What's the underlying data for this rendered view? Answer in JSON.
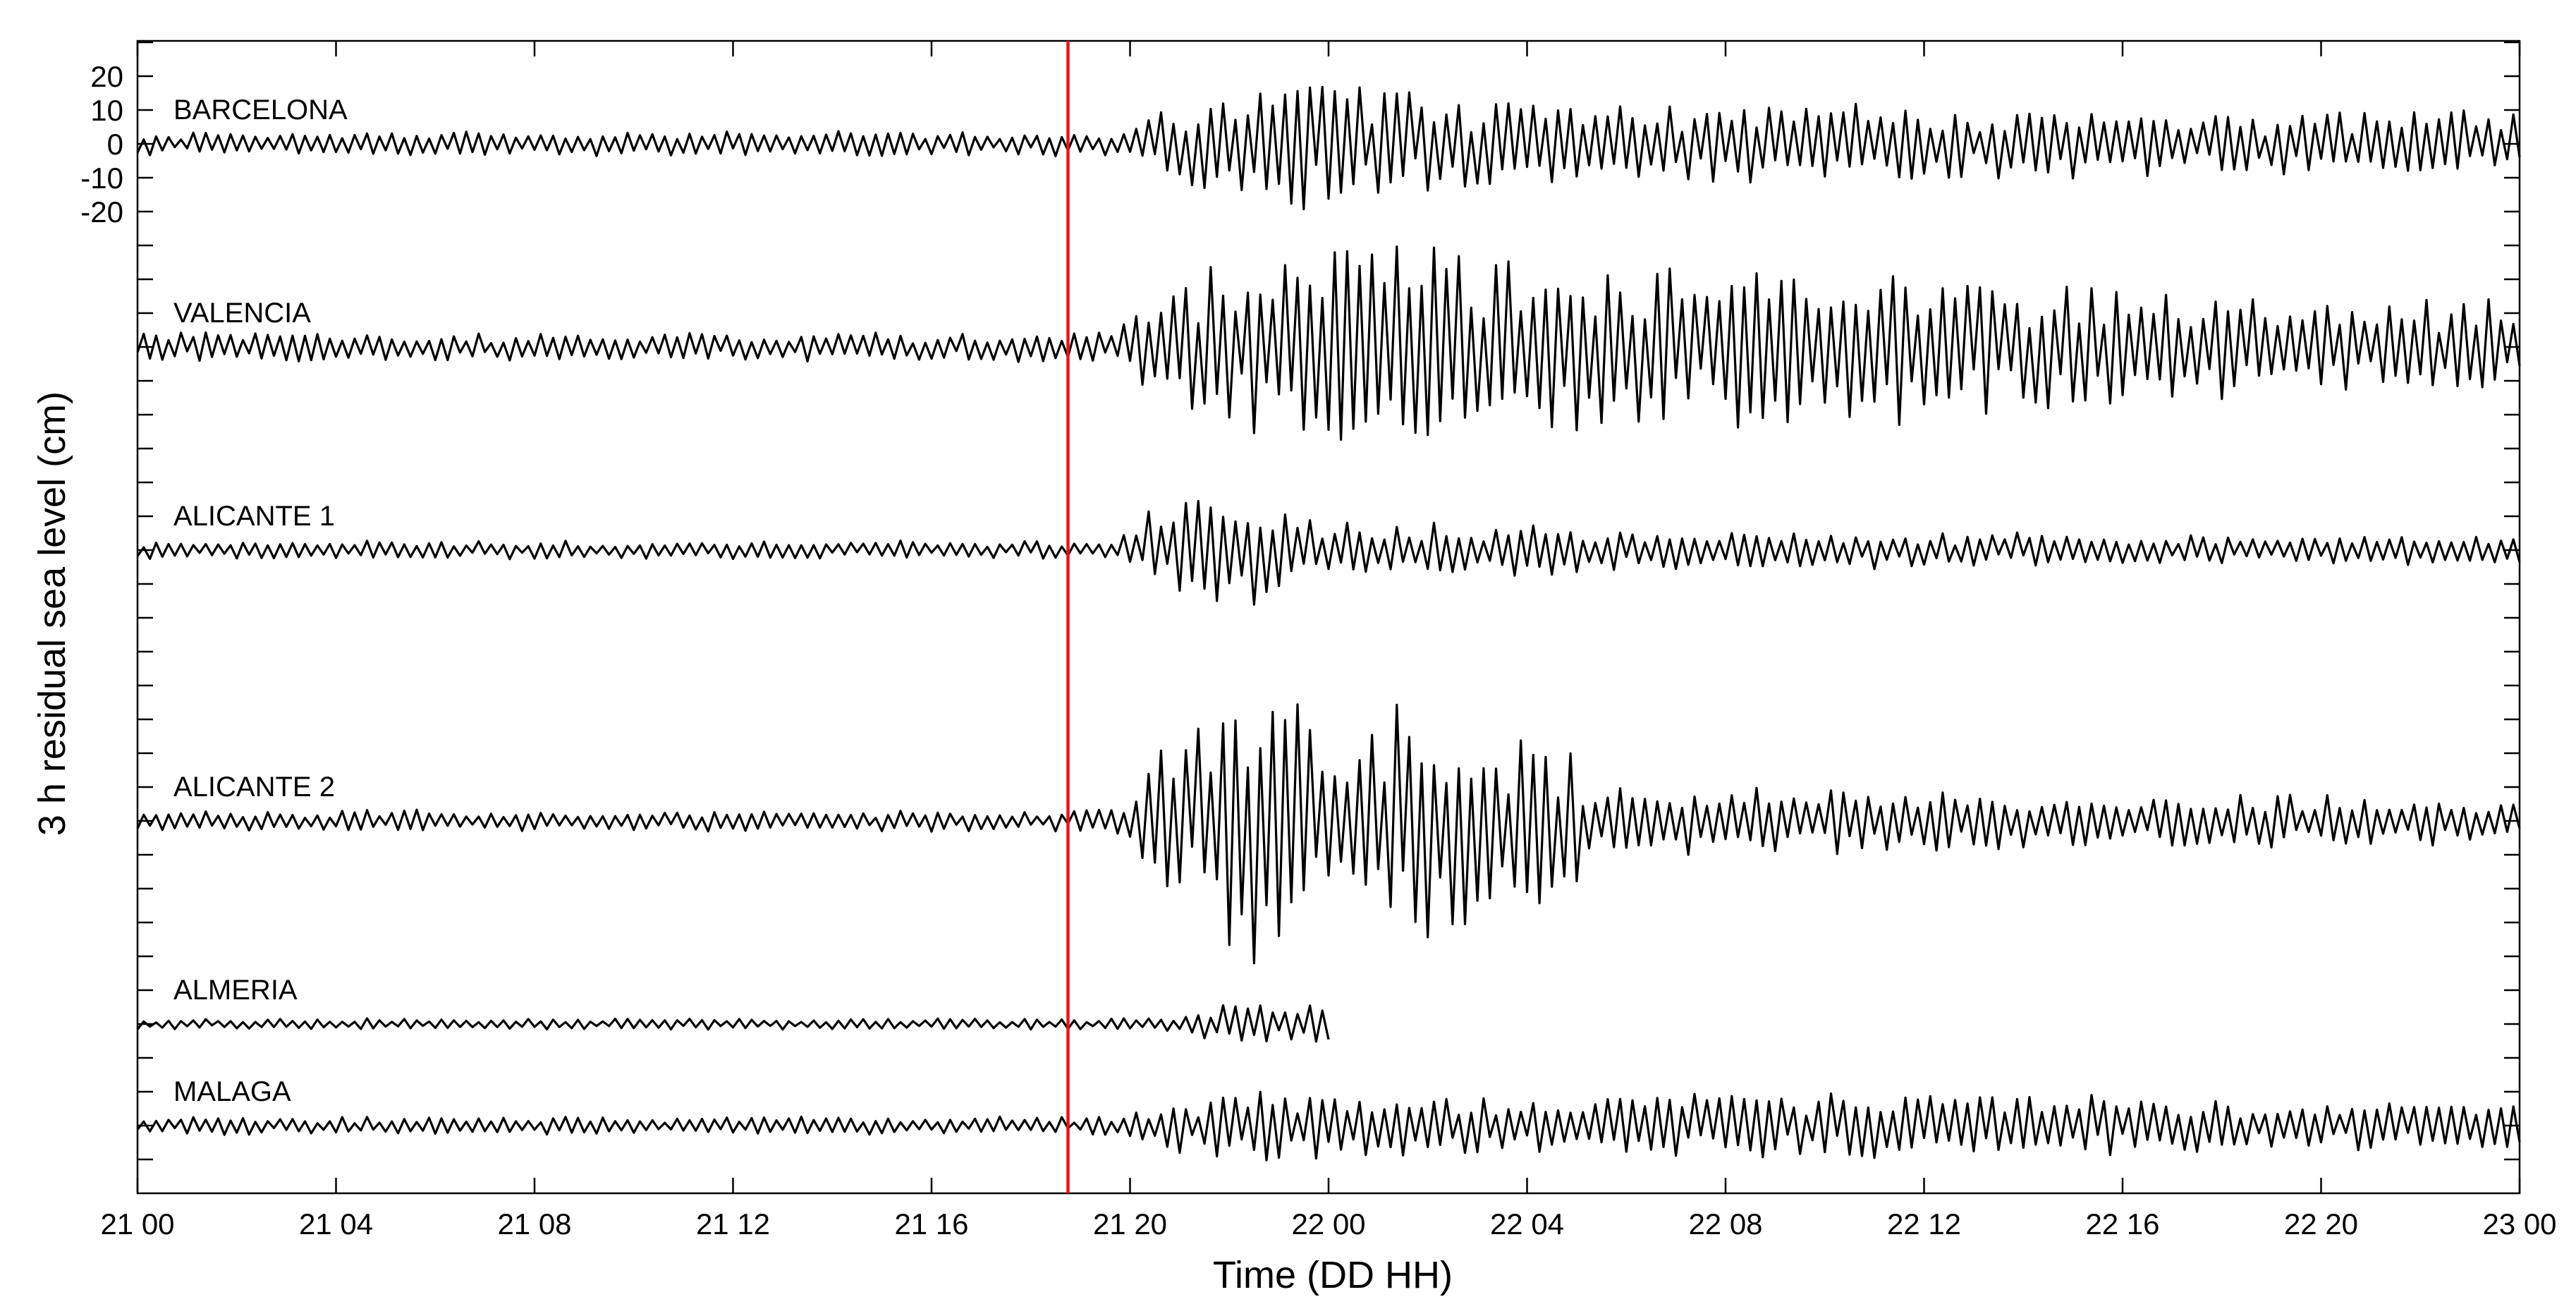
{
  "chart_data": {
    "type": "line",
    "title": "",
    "xlabel": "Time (DD HH)",
    "ylabel": "3 h residual sea level (cm)",
    "xlim_hours": [
      0,
      48
    ],
    "x_ticks": [
      {
        "hours": 0,
        "label": "21 00"
      },
      {
        "hours": 4,
        "label": "21 04"
      },
      {
        "hours": 8,
        "label": "21 08"
      },
      {
        "hours": 12,
        "label": "21 12"
      },
      {
        "hours": 16,
        "label": "21 16"
      },
      {
        "hours": 20,
        "label": "21 20"
      },
      {
        "hours": 24,
        "label": "22 00"
      },
      {
        "hours": 28,
        "label": "22 04"
      },
      {
        "hours": 32,
        "label": "22 08"
      },
      {
        "hours": 36,
        "label": "22 12"
      },
      {
        "hours": 40,
        "label": "22 16"
      },
      {
        "hours": 44,
        "label": "22 20"
      },
      {
        "hours": 48,
        "label": "23 00"
      }
    ],
    "y_tick_labels": [
      "20",
      "10",
      "0",
      "-10",
      "-20"
    ],
    "y_tick_values": [
      20,
      10,
      0,
      -10,
      -20
    ],
    "event_marker": {
      "hours": 18.75,
      "color": "#e8141b"
    },
    "series_color": "#000000",
    "sample_step_hours": 0.125,
    "series": [
      {
        "name": "BARCELONA",
        "baseline_cm": 0,
        "end_hours": 48,
        "envelope": [
          [
            0,
            3.5
          ],
          [
            18.75,
            3.5
          ],
          [
            19.8,
            4
          ],
          [
            20.5,
            9
          ],
          [
            21,
            12
          ],
          [
            22,
            16
          ],
          [
            23,
            21
          ],
          [
            24,
            18
          ],
          [
            26,
            14
          ],
          [
            28,
            12
          ],
          [
            30,
            11
          ],
          [
            34,
            11
          ],
          [
            38,
            10
          ],
          [
            44,
            9
          ],
          [
            48,
            9
          ]
        ]
      },
      {
        "name": "VALENCIA",
        "baseline_cm": -60,
        "end_hours": 48,
        "envelope": [
          [
            0,
            4
          ],
          [
            18.75,
            4
          ],
          [
            19.8,
            5
          ],
          [
            20.5,
            15
          ],
          [
            21.5,
            22
          ],
          [
            22.5,
            26
          ],
          [
            23.5,
            29
          ],
          [
            24.5,
            30
          ],
          [
            26,
            27
          ],
          [
            28,
            25
          ],
          [
            32,
            22
          ],
          [
            36,
            22
          ],
          [
            38,
            18
          ],
          [
            44,
            13
          ],
          [
            48,
            13
          ]
        ]
      },
      {
        "name": "ALICANTE 1",
        "baseline_cm": -120,
        "end_hours": 48,
        "envelope": [
          [
            0,
            2.5
          ],
          [
            18.75,
            2.5
          ],
          [
            19.8,
            3
          ],
          [
            20.5,
            14
          ],
          [
            21.5,
            17
          ],
          [
            22.5,
            15
          ],
          [
            23.3,
            9
          ],
          [
            25,
            7
          ],
          [
            26,
            8
          ],
          [
            30,
            6
          ],
          [
            36,
            5
          ],
          [
            44,
            4
          ],
          [
            48,
            4
          ]
        ]
      },
      {
        "name": "ALICANTE 2",
        "baseline_cm": -200,
        "end_hours": 48,
        "envelope": [
          [
            0,
            3
          ],
          [
            18.75,
            3
          ],
          [
            19.8,
            4
          ],
          [
            20.5,
            18
          ],
          [
            21.5,
            34
          ],
          [
            22.5,
            42
          ],
          [
            23.5,
            30
          ],
          [
            24.5,
            24
          ],
          [
            25.5,
            36
          ],
          [
            26.5,
            34
          ],
          [
            27.5,
            22
          ],
          [
            28.5,
            28
          ],
          [
            29.2,
            12
          ],
          [
            31,
            9
          ],
          [
            36,
            9
          ],
          [
            44,
            7
          ],
          [
            48,
            7
          ]
        ]
      },
      {
        "name": "ALMERIA",
        "baseline_cm": -260,
        "end_hours": 24,
        "envelope": [
          [
            0,
            1.5
          ],
          [
            18.75,
            1.5
          ],
          [
            19.8,
            1.8
          ],
          [
            21,
            2
          ],
          [
            21.5,
            5
          ],
          [
            22.5,
            6
          ],
          [
            24,
            6
          ]
        ]
      },
      {
        "name": "MALAGA",
        "baseline_cm": -290,
        "end_hours": 48,
        "envelope": [
          [
            0,
            2.5
          ],
          [
            18.75,
            2.5
          ],
          [
            19.8,
            3
          ],
          [
            20.8,
            7
          ],
          [
            21.5,
            9
          ],
          [
            22.5,
            10
          ],
          [
            23.5,
            10
          ],
          [
            25,
            8
          ],
          [
            28,
            8
          ],
          [
            32,
            9
          ],
          [
            34,
            9
          ],
          [
            40,
            8
          ],
          [
            44,
            7
          ],
          [
            48,
            7
          ]
        ]
      }
    ]
  }
}
